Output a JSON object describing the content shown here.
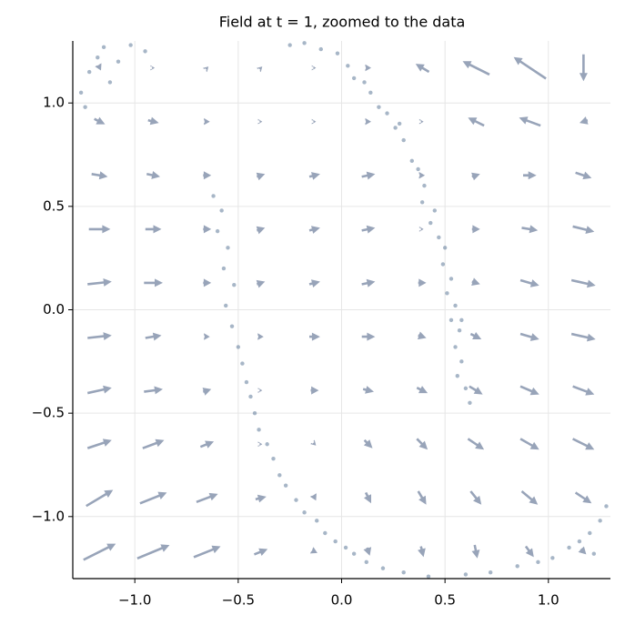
{
  "chart_data": {
    "type": "quiver",
    "title": "Field at t = 1, zoomed to the data",
    "xlim": [
      -1.3,
      1.3
    ],
    "ylim": [
      -1.3,
      1.3
    ],
    "xticks": [
      {
        "value": -1,
        "label": "−1.0"
      },
      {
        "value": -0.5,
        "label": "−0.5"
      },
      {
        "value": 0,
        "label": "0.0"
      },
      {
        "value": 0.5,
        "label": "0.5"
      },
      {
        "value": 1,
        "label": "1.0"
      }
    ],
    "yticks": [
      {
        "value": -1,
        "label": "−1.0"
      },
      {
        "value": -0.5,
        "label": "−0.5"
      },
      {
        "value": 0,
        "label": "0.0"
      },
      {
        "value": 0.5,
        "label": "0.5"
      },
      {
        "value": 1,
        "label": "1.0"
      }
    ],
    "grid": true,
    "quiver": {
      "color": "#98a4b9",
      "x": [
        -1.17,
        -0.91,
        -0.65,
        -0.39,
        -0.13,
        0.13,
        0.39,
        0.65,
        0.91,
        1.17
      ],
      "y": [
        -1.17,
        -0.91,
        -0.65,
        -0.39,
        -0.13,
        0.13,
        0.39,
        0.65,
        0.91,
        1.17
      ],
      "u": [
        [
          1.2,
          1.2,
          1.0,
          0.5,
          0.2,
          0.1,
          0.1,
          0.1,
          0.3,
          0.2
        ],
        [
          1.0,
          1.0,
          0.8,
          0.4,
          0.1,
          0.2,
          0.3,
          0.4,
          0.6,
          0.6
        ],
        [
          0.9,
          0.8,
          0.5,
          0.1,
          0.1,
          0.3,
          0.4,
          0.6,
          0.7,
          0.8
        ],
        [
          0.9,
          0.7,
          0.3,
          0.1,
          0.3,
          0.4,
          0.4,
          0.5,
          0.7,
          0.8
        ],
        [
          0.9,
          0.6,
          0.2,
          0.2,
          0.4,
          0.5,
          0.3,
          0.4,
          0.7,
          0.9
        ],
        [
          0.9,
          0.7,
          0.3,
          0.3,
          0.4,
          0.5,
          0.3,
          0.3,
          0.7,
          0.9
        ],
        [
          0.8,
          0.6,
          0.3,
          0.3,
          0.4,
          0.5,
          0.1,
          0.3,
          0.6,
          0.8
        ],
        [
          0.6,
          0.5,
          0.3,
          0.3,
          0.4,
          0.5,
          0.2,
          0.3,
          0.5,
          0.6
        ],
        [
          0.4,
          0.4,
          0.2,
          0.1,
          0.1,
          0.2,
          0.1,
          -0.6,
          -0.8,
          -0.3
        ],
        [
          0.1,
          0.1,
          0.1,
          0.1,
          0.1,
          0.2,
          -0.5,
          -1.0,
          -1.2,
          0
        ]
      ],
      "v": [
        [
          0.6,
          0.5,
          0.4,
          0.2,
          -0.1,
          -0.3,
          -0.4,
          -0.5,
          -0.4,
          -0.2
        ],
        [
          0.6,
          0.4,
          0.3,
          0.1,
          -0.2,
          -0.4,
          -0.5,
          -0.5,
          -0.5,
          -0.4
        ],
        [
          0.3,
          0.3,
          0.2,
          0,
          -0.1,
          -0.3,
          -0.4,
          -0.4,
          -0.4,
          -0.4
        ],
        [
          0.2,
          0.1,
          0.1,
          0,
          0,
          -0.1,
          -0.2,
          -0.3,
          -0.3,
          -0.3
        ],
        [
          0.1,
          0.1,
          0,
          0,
          0,
          0,
          -0.1,
          -0.2,
          -0.2,
          -0.2
        ],
        [
          0.1,
          0,
          0,
          0.1,
          0.1,
          0.1,
          0,
          -0.1,
          -0.2,
          -0.2
        ],
        [
          0,
          0,
          0,
          0.1,
          0.1,
          0.1,
          0,
          0,
          -0.1,
          -0.2
        ],
        [
          -0.1,
          -0.1,
          0,
          0.1,
          0.1,
          0.1,
          0,
          0.1,
          0,
          -0.2
        ],
        [
          -0.2,
          -0.1,
          0,
          0,
          0,
          0,
          0,
          0.3,
          0.3,
          -0.1
        ],
        [
          -0.2,
          0,
          0.1,
          0.1,
          0,
          0,
          0.3,
          0.5,
          0.8,
          -1.0
        ]
      ]
    },
    "scatter": {
      "color": "#4f6d8f",
      "x": [
        -1.26,
        -1.22,
        -1.18,
        -1.24,
        -1.15,
        -1.08,
        -1.12,
        -1.02,
        -0.95,
        -0.25,
        -0.18,
        -0.1,
        -0.02,
        0.03,
        0.06,
        0.11,
        0.14,
        0.18,
        0.22,
        0.26,
        0.3,
        0.28,
        0.34,
        0.37,
        0.4,
        0.39,
        0.45,
        0.43,
        0.47,
        0.5,
        0.49,
        0.53,
        0.51,
        0.55,
        0.53,
        0.57,
        0.55,
        0.58,
        0.56,
        0.6,
        0.62,
        0.58,
        -0.62,
        -0.58,
        -0.6,
        -0.55,
        -0.57,
        -0.52,
        -0.56,
        -0.53,
        -0.5,
        -0.48,
        -0.46,
        -0.44,
        -0.42,
        -0.4,
        -0.36,
        -0.33,
        -0.3,
        -0.27,
        -0.22,
        -0.18,
        -0.12,
        -0.08,
        -0.03,
        0.02,
        0.06,
        0.12,
        0.2,
        0.3,
        0.42,
        0.6,
        0.72,
        0.85,
        0.95,
        1.02,
        1.1,
        1.15,
        1.2,
        1.25,
        1.22,
        1.28
      ],
      "y": [
        1.05,
        1.15,
        1.22,
        0.98,
        1.27,
        1.2,
        1.1,
        1.28,
        1.25,
        1.28,
        1.29,
        1.26,
        1.24,
        1.18,
        1.12,
        1.1,
        1.05,
        0.98,
        0.95,
        0.88,
        0.82,
        0.9,
        0.72,
        0.68,
        0.6,
        0.52,
        0.48,
        0.42,
        0.35,
        0.3,
        0.22,
        0.15,
        0.08,
        0.02,
        -0.05,
        -0.1,
        -0.18,
        -0.25,
        -0.32,
        -0.38,
        -0.45,
        -0.05,
        0.55,
        0.48,
        0.38,
        0.3,
        0.2,
        0.12,
        0.02,
        -0.08,
        -0.18,
        -0.26,
        -0.35,
        -0.42,
        -0.5,
        -0.58,
        -0.65,
        -0.72,
        -0.8,
        -0.85,
        -0.92,
        -0.98,
        -1.02,
        -1.08,
        -1.12,
        -1.15,
        -1.18,
        -1.22,
        -1.25,
        -1.27,
        -1.29,
        -1.28,
        -1.27,
        -1.24,
        -1.22,
        -1.2,
        -1.15,
        -1.12,
        -1.08,
        -1.02,
        -1.18,
        -0.95
      ]
    }
  }
}
